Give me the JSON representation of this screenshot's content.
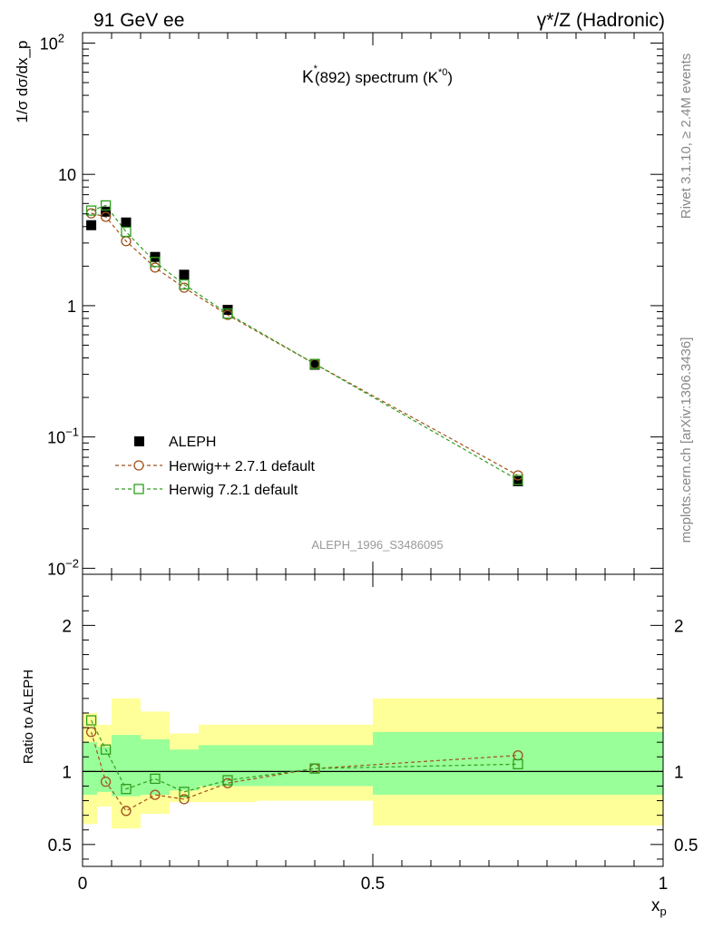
{
  "header": {
    "left": "91 GeV ee",
    "right": "γ*/Z (Hadronic)"
  },
  "side_text": {
    "rivet": "Rivet 3.1.10, ≥ 2.4M events",
    "mcplots": "mcplots.cern.ch [arXiv:1306.3436]"
  },
  "chart_data": [
    {
      "panel": "main",
      "type": "scatter",
      "title_main": "K",
      "title_sup": "*",
      "title_rest": "(892) spectrum (K",
      "title_rest_sup": "*0",
      "title_close": ")",
      "ylabel": "1/σ dσ/dx_p",
      "yscale": "log",
      "ylim": [
        0.009,
        120
      ],
      "xlim": [
        0,
        1
      ],
      "y_ticks": [
        {
          "value": 0.01,
          "base": "10",
          "exp": "−2"
        },
        {
          "value": 0.1,
          "base": "10",
          "exp": "−1"
        },
        {
          "value": 1,
          "base": "1",
          "exp": ""
        },
        {
          "value": 10,
          "base": "10",
          "exp": ""
        },
        {
          "value": 100,
          "base": "10",
          "exp": "2"
        }
      ],
      "watermark": "ALEPH_1996_S3486095",
      "legend": {
        "position": "bottom-left"
      },
      "series": [
        {
          "name": "ALEPH",
          "marker": "filled-square",
          "color": "#000000",
          "x": [
            0.015,
            0.04,
            0.075,
            0.125,
            0.175,
            0.25,
            0.4,
            0.75
          ],
          "y": [
            4.1,
            5.2,
            4.3,
            2.35,
            1.72,
            0.93,
            0.355,
            0.046
          ]
        },
        {
          "name": "Herwig++ 2.7.1 default",
          "marker": "open-circle",
          "line": "dashed",
          "color": "#a0521c",
          "x": [
            0.015,
            0.04,
            0.075,
            0.125,
            0.175,
            0.25,
            0.4,
            0.75
          ],
          "y": [
            5.05,
            4.75,
            3.1,
            1.95,
            1.37,
            0.85,
            0.36,
            0.051
          ]
        },
        {
          "name": "Herwig 7.2.1 default",
          "marker": "open-square",
          "line": "dashed",
          "color": "#2f9e1f",
          "x": [
            0.015,
            0.04,
            0.075,
            0.125,
            0.175,
            0.25,
            0.4,
            0.75
          ],
          "y": [
            5.3,
            5.8,
            3.65,
            2.15,
            1.45,
            0.87,
            0.36,
            0.047
          ]
        }
      ]
    },
    {
      "panel": "ratio",
      "type": "line",
      "ylabel": "Ratio to ALEPH",
      "xlabel": "x",
      "xlabel_sub": "p",
      "ylim": [
        0.35,
        2.35
      ],
      "xlim": [
        0,
        1
      ],
      "y_ticks": [
        0.5,
        1,
        2
      ],
      "y_ticklabels": [
        "0.5",
        "1",
        "2"
      ],
      "x_ticks": [
        0,
        0.5,
        1
      ],
      "x_ticklabels": [
        "0",
        "0.5",
        "1"
      ],
      "bands": [
        {
          "x0": 0.0,
          "x1": 0.025,
          "yellow": [
            0.64,
            1.4
          ],
          "green": [
            0.84,
            1.2
          ]
        },
        {
          "x0": 0.025,
          "x1": 0.05,
          "yellow": [
            0.76,
            1.32
          ],
          "green": [
            0.86,
            1.17
          ]
        },
        {
          "x0": 0.05,
          "x1": 0.1,
          "yellow": [
            0.61,
            1.5
          ],
          "green": [
            0.83,
            1.25
          ]
        },
        {
          "x0": 0.1,
          "x1": 0.15,
          "yellow": [
            0.71,
            1.41
          ],
          "green": [
            0.84,
            1.22
          ]
        },
        {
          "x0": 0.15,
          "x1": 0.2,
          "yellow": [
            0.79,
            1.26
          ],
          "green": [
            0.87,
            1.15
          ]
        },
        {
          "x0": 0.2,
          "x1": 0.3,
          "yellow": [
            0.79,
            1.32
          ],
          "green": [
            0.9,
            1.18
          ]
        },
        {
          "x0": 0.3,
          "x1": 0.5,
          "yellow": [
            0.8,
            1.32
          ],
          "green": [
            0.9,
            1.18
          ]
        },
        {
          "x0": 0.5,
          "x1": 1.0,
          "yellow": [
            0.63,
            1.5
          ],
          "green": [
            0.84,
            1.27
          ]
        }
      ],
      "reference_line": 1,
      "series": [
        {
          "name": "Herwig++ 2.7.1 default",
          "marker": "open-circle",
          "color": "#a0521c",
          "x": [
            0.015,
            0.04,
            0.075,
            0.125,
            0.175,
            0.25,
            0.4,
            0.75
          ],
          "y": [
            1.27,
            0.93,
            0.73,
            0.84,
            0.81,
            0.92,
            1.02,
            1.11
          ]
        },
        {
          "name": "Herwig 7.2.1 default",
          "marker": "open-square",
          "color": "#2f9e1f",
          "x": [
            0.015,
            0.04,
            0.075,
            0.125,
            0.175,
            0.25,
            0.4,
            0.75
          ],
          "y": [
            1.35,
            1.15,
            0.88,
            0.95,
            0.86,
            0.94,
            1.02,
            1.05
          ]
        }
      ]
    }
  ]
}
